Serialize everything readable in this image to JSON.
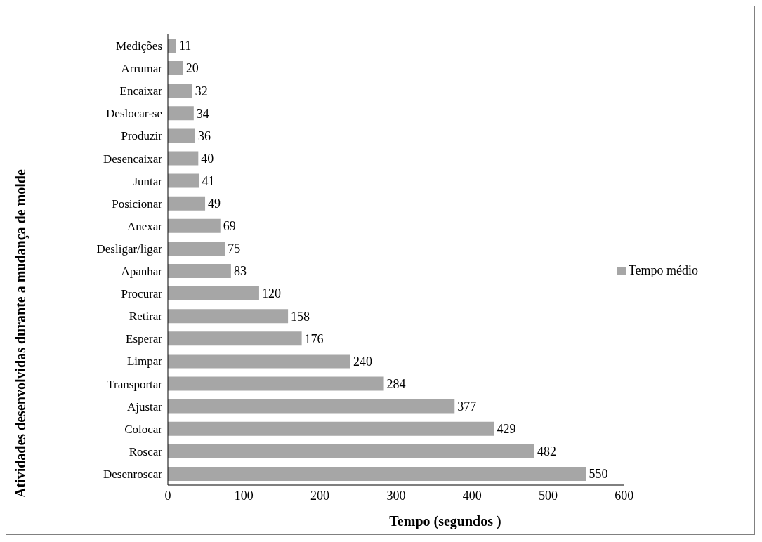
{
  "chart_data": {
    "type": "bar",
    "orientation": "horizontal",
    "xlabel": "Tempo (segundos )",
    "ylabel": "Atividades desenvolvidas durante a mudança de molde",
    "categories": [
      "Medições",
      "Arrumar",
      "Encaixar",
      "Deslocar-se",
      "Produzir",
      "Desencaixar",
      "Juntar",
      "Posicionar",
      "Anexar",
      "Desligar/ligar",
      "Apanhar",
      "Procurar",
      "Retirar",
      "Esperar",
      "Limpar",
      "Transportar",
      "Ajustar",
      "Colocar",
      "Roscar",
      "Desenroscar"
    ],
    "series": [
      {
        "name": "Tempo médio",
        "color": "#a6a6a6",
        "values": [
          11,
          20,
          32,
          34,
          36,
          40,
          41,
          49,
          69,
          75,
          83,
          120,
          158,
          176,
          240,
          284,
          377,
          429,
          482,
          550
        ]
      }
    ],
    "xlim": [
      0,
      600
    ],
    "xticks": [
      0,
      100,
      200,
      300,
      400,
      500,
      600
    ],
    "grid": false,
    "legend": "right",
    "data_labels": true
  }
}
